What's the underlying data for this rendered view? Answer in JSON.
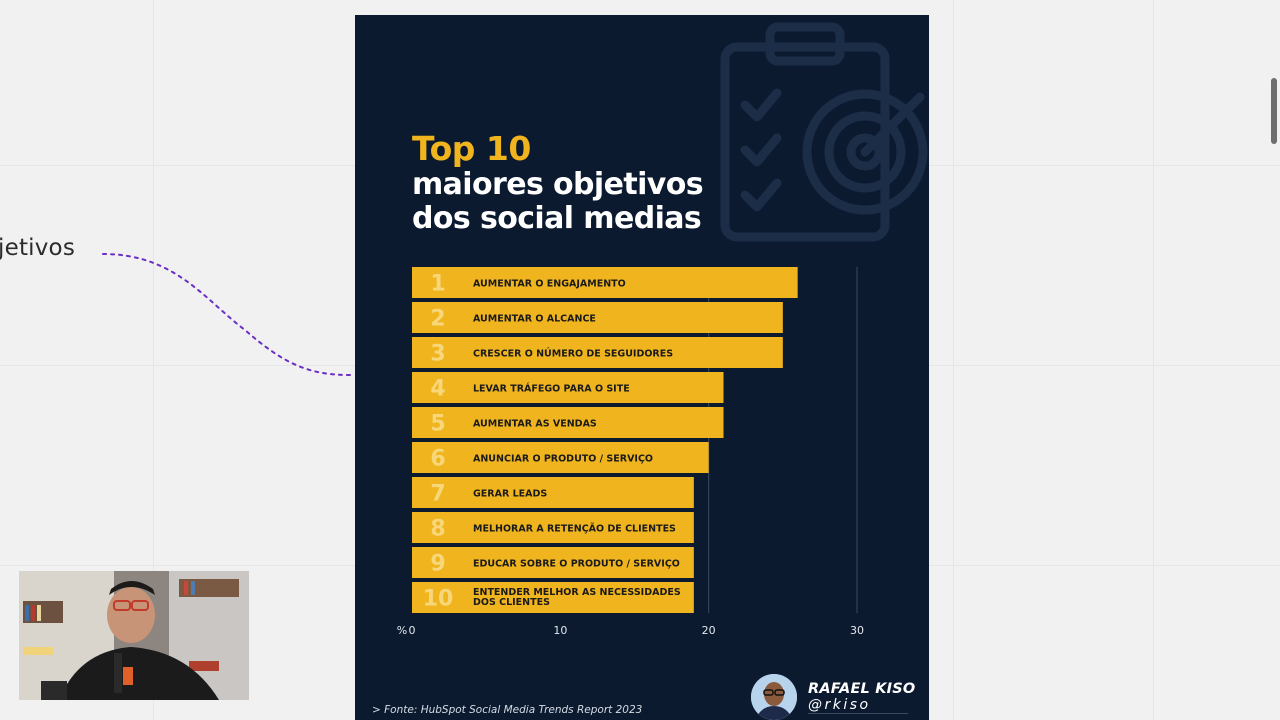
{
  "canvas": {
    "left_label": "jetivos"
  },
  "card": {
    "title_highlight": "Top 10",
    "title_line_1": "maiores objetivos",
    "title_line_2": "dos social medias",
    "source": "> Fonte: HubSpot Social Media Trends Report 2023",
    "author_name": "RAFAEL KISO",
    "author_handle": "@rkiso"
  },
  "icons": {
    "background": "clipboard-target-icon"
  },
  "colors": {
    "card_bg": "#0c1a30",
    "bar": "#f0b51e",
    "accent_dotted_line": "#6b2fc4"
  },
  "chart_data": {
    "type": "bar",
    "orientation": "horizontal",
    "rank_labels": [
      "1",
      "2",
      "3",
      "4",
      "5",
      "6",
      "7",
      "8",
      "9",
      "10"
    ],
    "categories": [
      "AUMENTAR O ENGAJAMENTO",
      "AUMENTAR O ALCANCE",
      "CRESCER O NÚMERO DE SEGUIDORES",
      "LEVAR TRÁFEGO PARA O SITE",
      "AUMENTAR AS VENDAS",
      "ANUNCIAR O PRODUTO / SERVIÇO",
      "GERAR LEADS",
      "MELHORAR A RETENÇÃO DE CLIENTES",
      "EDUCAR SOBRE O PRODUTO / SERVIÇO",
      "ENTENDER MELHOR AS NECESSIDADES DOS CLIENTES"
    ],
    "values": [
      26,
      25,
      25,
      21,
      21,
      20,
      19,
      19,
      19,
      19
    ],
    "xaxis_unit_label": "%",
    "xticks": [
      "0",
      "10",
      "20",
      "30"
    ],
    "xlim": [
      0,
      30
    ],
    "gridlines": "vertical at 20 and 30"
  }
}
